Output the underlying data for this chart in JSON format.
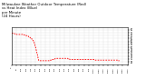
{
  "title": "Milwaukee Weather Outdoor Temperature (Red)\nvs Heat Index (Blue)\nper Minute\n(24 Hours)",
  "title_fontsize": 2.8,
  "bg_color": "#ffffff",
  "line_color": "#ff0000",
  "line_color2": "#0000ff",
  "xlim": [
    0,
    1440
  ],
  "ylim": [
    20,
    85
  ],
  "yticks": [
    25,
    30,
    35,
    40,
    45,
    50,
    55,
    60,
    65,
    70,
    75,
    80
  ],
  "xtick_interval": 60,
  "temp_data": [
    74,
    74,
    74,
    74,
    74,
    74,
    74,
    74,
    74,
    74,
    74,
    74,
    74,
    74,
    74,
    74,
    74,
    74,
    74,
    74,
    74,
    74,
    74,
    74,
    74,
    74,
    74,
    74,
    74,
    74,
    74,
    74,
    74,
    74,
    74,
    73,
    73,
    73,
    73,
    73,
    73,
    73,
    73,
    73,
    73,
    73,
    73,
    73,
    73,
    73,
    73,
    73,
    73,
    73,
    73,
    73,
    73,
    73,
    73,
    73,
    72,
    72,
    72,
    72,
    72,
    72,
    72,
    72,
    72,
    72,
    72,
    72,
    72,
    72,
    72,
    72,
    72,
    72,
    72,
    72,
    72,
    72,
    72,
    72,
    72,
    72,
    72,
    72,
    72,
    72,
    72,
    72,
    72,
    72,
    72,
    72,
    72,
    72,
    72,
    72,
    72,
    72,
    72,
    72,
    72,
    72,
    72,
    72,
    72,
    72,
    72,
    72,
    72,
    72,
    72,
    72,
    72,
    72,
    72,
    72,
    72,
    72,
    72,
    72,
    72,
    72,
    72,
    72,
    72,
    72,
    72,
    72,
    72,
    72,
    72,
    72,
    72,
    72,
    72,
    72,
    71,
    71,
    71,
    71,
    71,
    71,
    71,
    71,
    71,
    71,
    71,
    71,
    71,
    71,
    71,
    71,
    71,
    71,
    71,
    71,
    71,
    71,
    71,
    71,
    71,
    71,
    71,
    71,
    71,
    71,
    70,
    70,
    70,
    70,
    70,
    70,
    70,
    70,
    70,
    70,
    70,
    70,
    70,
    70,
    70,
    70,
    70,
    70,
    70,
    70,
    70,
    70,
    70,
    70,
    70,
    70,
    70,
    70,
    70,
    70,
    69,
    69,
    69,
    69,
    69,
    69,
    69,
    69,
    69,
    69,
    68,
    68,
    68,
    68,
    68,
    68,
    68,
    68,
    68,
    68,
    67,
    67,
    67,
    67,
    67,
    67,
    67,
    67,
    67,
    67,
    66,
    66,
    66,
    66,
    66,
    66,
    66,
    66,
    66,
    66,
    65,
    65,
    65,
    65,
    65,
    65,
    65,
    65,
    65,
    64,
    64,
    64,
    64,
    64,
    64,
    64,
    64,
    64,
    64,
    63,
    63,
    63,
    63,
    62,
    62,
    62,
    62,
    62,
    61,
    61,
    61,
    61,
    60,
    60,
    60,
    60,
    59,
    59,
    59,
    58,
    58,
    58,
    57,
    57,
    56,
    56,
    56,
    55,
    55,
    54,
    54,
    53,
    53,
    52,
    52,
    51,
    51,
    50,
    50,
    49,
    49,
    48,
    48,
    47,
    47,
    46,
    45,
    45,
    44,
    44,
    43,
    43,
    42,
    42,
    41,
    40,
    40,
    39,
    38,
    38,
    37,
    37,
    36,
    35,
    35,
    34,
    33,
    33,
    32,
    31,
    31,
    30,
    30,
    29,
    29,
    28,
    28,
    27,
    27,
    27,
    27,
    27,
    27,
    27,
    27,
    27,
    27,
    27,
    27,
    27,
    27,
    27,
    27,
    27,
    27,
    27,
    27,
    27,
    27,
    27,
    27,
    27,
    27,
    27,
    27,
    27,
    27,
    27,
    27,
    27,
    27,
    27,
    27,
    27,
    27,
    27,
    27,
    27,
    27,
    27,
    27,
    27,
    27,
    27,
    27,
    27,
    27,
    27,
    27,
    27,
    27,
    27,
    27,
    27,
    27,
    27,
    27,
    27,
    27,
    27,
    27,
    27,
    27,
    27,
    27,
    27,
    27,
    27,
    27,
    27,
    27,
    27,
    27,
    27,
    27,
    27,
    27,
    27,
    27,
    27,
    27,
    27,
    27,
    27,
    27,
    27,
    27,
    27,
    27,
    27,
    27,
    27,
    27,
    27,
    27,
    27,
    27,
    27,
    27,
    27,
    27,
    27,
    27,
    27,
    27,
    27,
    27,
    27,
    27,
    27,
    27,
    27,
    27,
    27,
    27,
    27,
    27,
    27,
    27,
    27,
    27,
    27,
    27,
    27,
    27,
    27,
    27,
    27,
    27,
    27,
    27,
    27,
    27,
    27,
    27,
    27,
    27,
    27,
    27,
    27,
    28,
    28,
    28,
    28,
    28,
    28,
    28,
    28,
    28,
    28,
    28,
    28,
    28,
    28,
    28,
    28,
    28,
    28,
    28,
    28,
    28,
    29,
    29,
    29,
    29,
    29,
    29,
    29,
    29,
    29,
    29,
    29,
    29,
    29,
    29,
    29,
    29,
    29,
    29,
    30,
    30,
    30,
    30,
    30,
    30,
    30,
    30,
    30,
    30,
    30,
    30,
    30,
    30,
    30,
    30,
    30,
    30,
    30,
    30,
    30,
    30,
    31,
    31,
    31,
    31,
    31,
    31,
    31,
    31,
    31,
    31,
    31,
    31,
    31,
    31,
    31,
    31,
    31,
    31,
    31,
    31,
    31,
    31,
    31,
    31,
    31,
    31,
    31,
    31,
    31,
    31,
    31,
    31,
    31,
    31,
    31,
    31,
    31,
    31,
    31,
    31,
    31,
    31,
    31,
    31,
    31,
    31,
    31,
    31,
    31,
    31,
    31,
    31,
    31,
    31,
    31,
    31,
    31,
    31,
    31,
    31,
    31,
    31,
    31,
    31,
    31,
    31,
    31,
    31,
    31,
    31,
    31,
    31,
    31,
    31,
    31,
    31,
    31,
    31,
    31,
    31,
    31,
    31,
    31,
    31,
    31,
    31,
    31,
    31,
    31,
    31,
    31,
    31,
    31,
    31,
    31,
    31,
    31,
    31,
    31,
    31,
    31,
    31,
    31,
    31,
    31,
    31,
    31,
    31,
    31,
    31,
    31,
    31,
    31,
    31,
    31,
    31,
    31,
    31,
    31,
    31,
    31,
    31,
    31,
    31,
    31,
    31,
    31,
    31,
    31,
    31,
    31,
    31,
    31,
    31,
    31,
    31,
    31,
    31,
    31,
    31,
    31,
    31,
    31,
    31,
    31,
    31,
    31,
    31,
    31,
    31,
    31,
    31,
    31,
    31,
    31,
    31,
    31,
    31,
    31,
    30,
    30,
    30,
    30,
    30,
    30,
    30,
    30,
    30,
    30,
    30,
    30,
    30,
    30,
    30,
    30,
    30,
    30,
    30,
    30,
    29,
    29,
    29,
    29,
    29,
    29,
    29,
    29,
    29,
    29,
    29,
    29,
    29,
    29,
    29,
    29,
    29,
    29,
    29,
    29,
    29,
    29,
    29,
    29,
    29,
    29,
    29,
    29,
    29,
    29,
    29,
    29,
    29,
    29,
    29,
    29,
    29,
    29,
    29,
    29,
    29,
    29,
    29,
    29,
    29,
    29,
    29,
    29,
    29,
    29,
    29,
    29,
    29,
    29,
    29,
    29,
    29,
    29,
    29,
    29,
    29,
    29,
    29,
    29,
    29,
    29,
    29,
    29,
    29,
    29,
    29,
    29,
    29,
    29,
    29,
    29,
    29,
    29,
    29,
    29,
    29,
    29,
    29,
    29,
    29,
    29,
    29,
    29,
    29,
    29,
    29,
    29,
    29,
    29,
    29,
    29,
    29,
    29,
    29,
    29,
    29,
    29,
    29,
    29,
    29,
    29,
    29,
    29,
    29,
    29,
    29,
    29,
    29,
    29,
    29,
    29,
    29,
    29,
    29,
    29,
    29,
    29,
    29,
    29,
    29,
    29,
    29,
    29,
    29,
    29,
    29,
    29,
    29,
    29,
    29,
    29,
    29,
    29,
    29,
    29,
    29,
    29,
    29,
    29,
    29,
    29,
    29,
    29,
    29,
    29,
    29,
    29,
    29,
    29,
    29,
    29,
    29,
    29,
    29,
    29,
    29,
    29,
    29,
    29,
    29,
    29,
    29,
    29,
    29,
    29,
    29,
    29,
    29,
    29,
    29,
    29,
    29,
    29,
    29,
    29,
    29,
    29,
    29,
    29,
    29,
    29,
    29,
    29,
    29,
    29,
    29,
    29,
    29,
    29,
    29,
    29,
    29,
    29,
    29,
    29,
    29,
    29,
    29,
    29,
    29,
    29,
    29,
    29,
    29,
    29,
    29,
    29,
    29,
    29,
    29,
    29,
    29,
    29,
    29,
    29,
    29,
    29,
    29,
    29,
    29,
    29,
    29,
    29,
    29,
    29,
    29,
    29,
    29,
    29,
    29,
    29,
    29,
    29,
    29,
    29,
    29,
    29,
    29,
    29,
    29,
    29,
    29,
    29,
    29,
    29,
    29,
    29,
    29,
    29,
    29,
    29,
    29,
    29,
    29,
    29,
    29,
    29,
    29,
    29,
    29,
    29,
    29,
    29,
    29,
    29,
    29,
    29,
    29,
    29,
    29,
    29,
    29,
    29,
    29,
    29,
    29,
    29,
    29,
    29,
    29,
    29,
    29,
    29,
    29,
    29,
    29,
    29,
    29,
    29,
    29,
    29,
    29,
    29,
    29,
    29,
    29,
    29,
    29,
    29,
    29,
    29,
    29,
    29,
    29,
    29,
    28,
    28,
    28,
    28,
    28,
    28,
    28,
    28,
    28,
    28,
    28,
    28,
    28,
    28,
    28,
    28,
    28,
    28,
    28,
    28,
    28,
    28,
    28,
    28,
    28,
    28,
    28,
    28,
    28,
    28,
    28,
    28,
    28,
    28,
    28,
    28,
    28,
    28,
    28,
    28,
    28,
    28,
    28,
    28,
    28,
    28,
    28,
    28,
    28,
    28,
    28,
    28,
    28,
    28,
    28,
    28,
    28,
    28,
    28,
    28,
    28,
    28,
    28,
    28,
    28,
    28,
    28,
    28,
    28,
    28,
    28,
    28,
    28,
    28,
    28,
    28,
    28,
    28,
    28,
    28,
    28,
    28,
    28,
    28,
    28,
    28,
    28,
    28,
    28,
    28,
    28,
    28,
    28,
    28,
    28,
    28,
    28,
    28,
    28,
    28,
    28,
    28,
    28,
    28,
    28,
    28,
    28,
    28,
    28,
    28,
    28,
    28,
    28,
    28,
    28,
    28,
    28,
    28,
    28,
    28,
    28,
    28,
    28,
    28,
    28,
    28,
    28,
    28,
    28,
    28,
    28,
    28,
    28,
    28,
    28,
    28,
    28,
    28,
    28,
    28,
    28,
    28,
    28,
    28,
    28,
    28,
    28,
    28,
    28,
    28,
    28,
    28,
    28,
    28,
    28,
    28,
    28,
    28,
    28,
    28,
    28,
    28,
    28,
    28,
    28,
    28,
    28,
    28,
    28,
    28,
    28,
    28,
    28,
    28,
    28,
    28,
    28,
    28,
    28,
    28,
    28,
    28,
    28,
    28,
    28,
    28,
    28,
    28,
    28,
    28,
    28,
    28,
    28,
    28,
    28,
    28,
    28,
    28,
    28,
    28,
    28,
    28,
    28,
    28,
    28,
    28,
    28,
    28,
    28,
    28,
    28,
    28,
    28,
    28,
    28,
    28,
    28,
    28,
    28,
    28,
    28,
    28,
    28,
    28,
    28,
    28,
    28,
    28,
    28,
    28,
    28,
    28,
    28,
    28,
    28,
    28,
    28,
    28,
    28,
    28,
    28,
    28,
    28,
    28,
    28,
    28,
    28,
    28,
    28,
    28,
    28,
    28,
    28,
    28,
    28,
    28,
    28,
    28,
    28,
    28,
    28,
    28,
    28,
    28,
    28,
    28,
    28,
    28,
    28,
    28,
    28,
    28,
    28,
    28,
    28,
    28,
    28,
    28,
    28,
    28,
    28,
    28,
    28,
    28,
    28,
    28,
    28,
    28,
    28,
    28,
    27,
    27,
    27,
    27,
    27,
    27,
    27,
    27,
    27,
    27,
    27,
    27,
    27,
    27,
    27,
    27,
    27,
    27,
    27,
    27
  ]
}
